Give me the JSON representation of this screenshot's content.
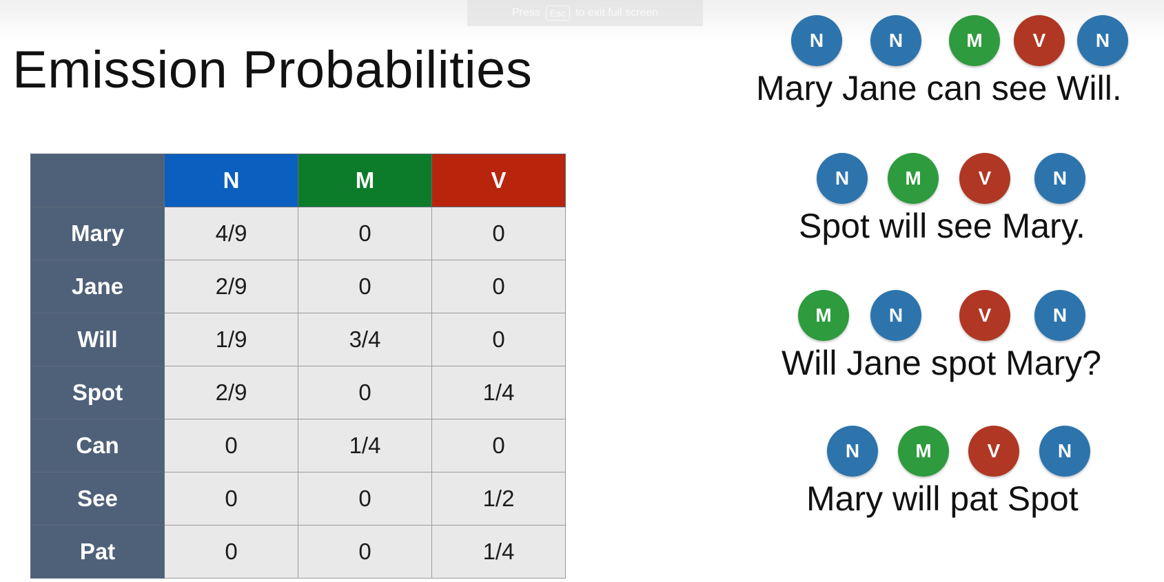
{
  "fullscreen_hint": {
    "press": "Press",
    "key": "Esc",
    "rest": "to exit full screen"
  },
  "title": "Emission Probabilities",
  "table": {
    "columns": [
      "N",
      "M",
      "V"
    ],
    "rows": [
      {
        "word": "Mary",
        "values": [
          "4/9",
          "0",
          "0"
        ]
      },
      {
        "word": "Jane",
        "values": [
          "2/9",
          "0",
          "0"
        ]
      },
      {
        "word": "Will",
        "values": [
          "1/9",
          "3/4",
          "0"
        ]
      },
      {
        "word": "Spot",
        "values": [
          "2/9",
          "0",
          "1/4"
        ]
      },
      {
        "word": "Can",
        "values": [
          "0",
          "1/4",
          "0"
        ]
      },
      {
        "word": "See",
        "values": [
          "0",
          "0",
          "1/2"
        ]
      },
      {
        "word": "Pat",
        "values": [
          "0",
          "0",
          "1/4"
        ]
      }
    ]
  },
  "colors": {
    "N": "#2d74ad",
    "M": "#2e9b3e",
    "V": "#b03723",
    "header_N": "#0b5fbf",
    "header_M": "#0d7c2a",
    "header_V": "#b9240d",
    "row_header": "#4f6179"
  },
  "sentences": [
    {
      "text": "Mary Jane can see Will.",
      "tags": [
        "N",
        "N",
        "M",
        "V",
        "N"
      ]
    },
    {
      "text": "Spot will see Mary.",
      "tags": [
        "N",
        "M",
        "V",
        "N"
      ]
    },
    {
      "text": "Will Jane spot Mary?",
      "tags": [
        "M",
        "N",
        "V",
        "N"
      ]
    },
    {
      "text": "Mary will pat Spot",
      "tags": [
        "N",
        "M",
        "V",
        "N"
      ]
    }
  ]
}
